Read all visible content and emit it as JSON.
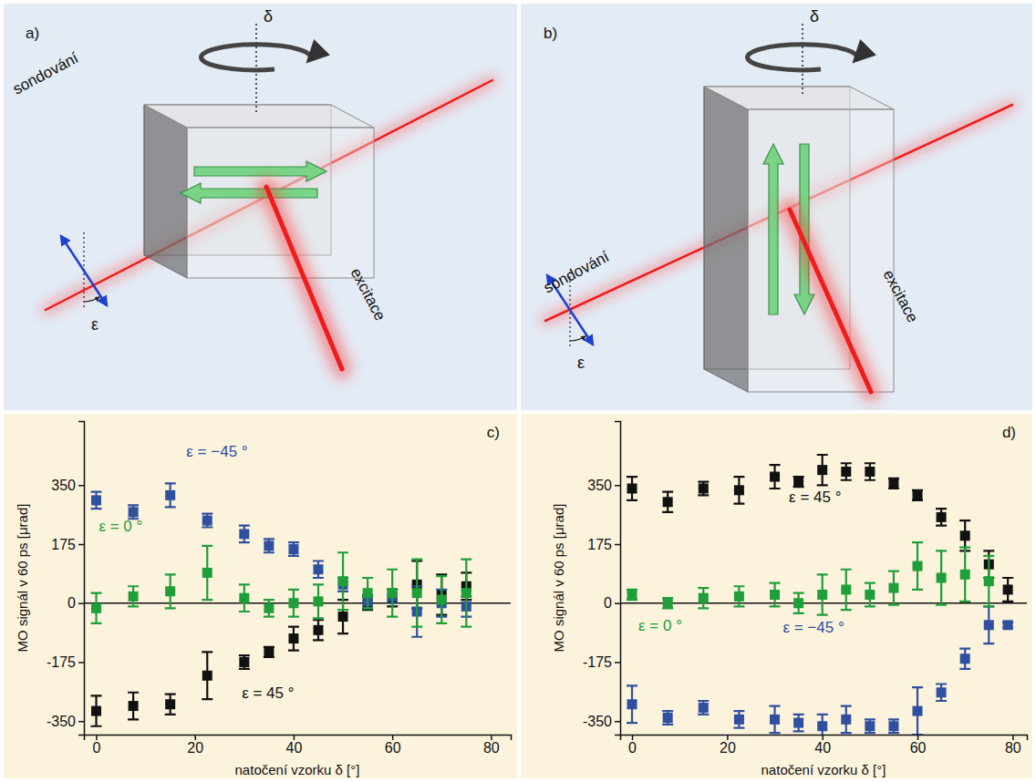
{
  "diagrams": [
    {
      "label": "a)",
      "rotation_label": "δ",
      "probe_label": "sondování",
      "excitation_label": "excitace",
      "angle_label": "ε"
    },
    {
      "label": "b)",
      "rotation_label": "δ",
      "probe_label": "sondování",
      "excitation_label": "excitace",
      "angle_label": "ε"
    }
  ],
  "chart_data": [
    {
      "type": "scatter",
      "title": "c)",
      "x_label": "natočení vzorku δ [°]",
      "y_label": "MO signál v 60 ps [μrad]",
      "xlim": [
        -2.5,
        84
      ],
      "ylim": [
        -390,
        540
      ],
      "xticks": [
        0,
        20,
        40,
        60,
        80
      ],
      "yticks": [
        -350,
        -175,
        0,
        175,
        350
      ],
      "marker": "square",
      "x": [
        0,
        7.5,
        15,
        22.5,
        30,
        35,
        40,
        45,
        50,
        55,
        60,
        65,
        70,
        75
      ],
      "series": [
        {
          "name": "ε = −45 °",
          "color": "#2f4f9f",
          "values": [
            305,
            270,
            320,
            245,
            205,
            170,
            160,
            100,
            55,
            5,
            20,
            -25,
            0,
            -10
          ],
          "errors": [
            25,
            20,
            35,
            20,
            25,
            20,
            20,
            25,
            20,
            20,
            20,
            75,
            40,
            30
          ]
        },
        {
          "name": "ε = 0 °",
          "color": "#1f9e3a",
          "values": [
            -15,
            20,
            35,
            90,
            15,
            -15,
            0,
            5,
            65,
            30,
            30,
            30,
            10,
            30
          ],
          "errors": [
            45,
            30,
            50,
            80,
            40,
            25,
            40,
            50,
            85,
            45,
            70,
            100,
            70,
            100
          ]
        },
        {
          "name": "ε = 45 °",
          "color": "#111111",
          "values": [
            -320,
            -305,
            -300,
            -215,
            -175,
            -145,
            -105,
            -80,
            -40,
            0,
            15,
            55,
            25,
            50
          ],
          "errors": [
            45,
            40,
            30,
            70,
            20,
            15,
            35,
            30,
            50,
            20,
            25,
            70,
            60,
            40
          ]
        }
      ]
    },
    {
      "type": "scatter",
      "title": "d)",
      "x_label": "natočení vzorku δ [°]",
      "y_label": "MO signál v 60 ps [μrad]",
      "xlim": [
        -2.5,
        83
      ],
      "ylim": [
        -390,
        540
      ],
      "xticks": [
        0,
        20,
        40,
        60,
        80
      ],
      "yticks": [
        -350,
        -175,
        0,
        175,
        350
      ],
      "marker": "square",
      "x": [
        0,
        7.5,
        15,
        22.5,
        30,
        35,
        40,
        45,
        50,
        55,
        60,
        65,
        70,
        75,
        79
      ],
      "series": [
        {
          "name": "ε = −45 °",
          "color": "#2f4f9f",
          "values": [
            -300,
            -340,
            -310,
            -345,
            -345,
            -355,
            -365,
            -345,
            -365,
            -365,
            -320,
            -265,
            -165,
            -65,
            -65
          ],
          "errors": [
            55,
            20,
            20,
            25,
            40,
            25,
            35,
            40,
            20,
            20,
            70,
            25,
            30,
            55,
            8
          ]
        },
        {
          "name": "ε = 0 °",
          "color": "#1f9e3a",
          "values": [
            25,
            0,
            15,
            20,
            25,
            0,
            25,
            40,
            25,
            45,
            110,
            75,
            85,
            65,
            null
          ],
          "errors": [
            15,
            15,
            30,
            30,
            35,
            30,
            60,
            60,
            35,
            50,
            70,
            80,
            80,
            75,
            null
          ]
        },
        {
          "name": "ε = 45 °",
          "color": "#111111",
          "values": [
            340,
            300,
            340,
            335,
            375,
            360,
            395,
            390,
            390,
            355,
            320,
            255,
            200,
            115,
            40
          ],
          "errors": [
            35,
            30,
            20,
            40,
            35,
            15,
            45,
            25,
            25,
            15,
            15,
            25,
            45,
            40,
            35
          ]
        }
      ]
    }
  ]
}
